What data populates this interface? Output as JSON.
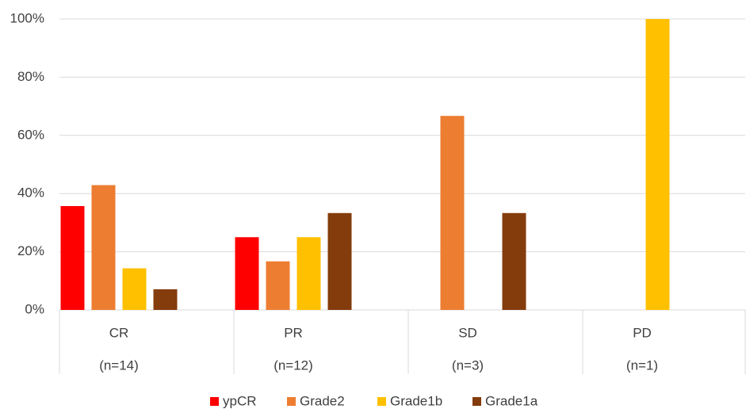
{
  "chart_data": {
    "type": "bar",
    "categories": [
      "CR",
      "PR",
      "SD",
      "PD"
    ],
    "category_sublabels": [
      "(n=14)",
      "(n=12)",
      "(n=3)",
      "(n=1)"
    ],
    "series": [
      {
        "name": "ypCR",
        "color": "#ff0000",
        "values": [
          35.7,
          25,
          0,
          0
        ]
      },
      {
        "name": "Grade2",
        "color": "#ed7d31",
        "values": [
          42.9,
          16.7,
          66.7,
          0
        ]
      },
      {
        "name": "Grade1b",
        "color": "#ffc000",
        "values": [
          14.3,
          25,
          0,
          100
        ]
      },
      {
        "name": "Grade1a",
        "color": "#843c0c",
        "values": [
          7.1,
          33.3,
          33.3,
          0
        ]
      }
    ],
    "ylim": [
      0,
      100
    ],
    "yticks": [
      {
        "value": 0,
        "label": "0%"
      },
      {
        "value": 20,
        "label": "20%"
      },
      {
        "value": 40,
        "label": "40%"
      },
      {
        "value": 60,
        "label": "60%"
      },
      {
        "value": 80,
        "label": "80%"
      },
      {
        "value": 100,
        "label": "100%"
      }
    ],
    "grid": true
  }
}
